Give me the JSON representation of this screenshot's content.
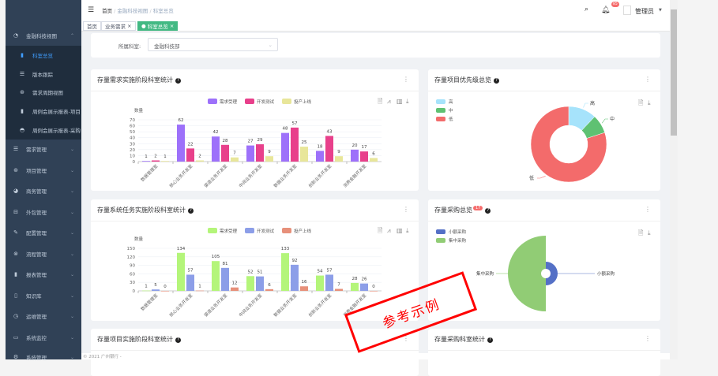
{
  "sidebar": {
    "items": [
      {
        "label": "金融科技视图",
        "icon": "dashboard-icon",
        "expanded": true
      },
      {
        "label": "科室总览",
        "icon": "bar-chart-icon",
        "child": true,
        "active": true
      },
      {
        "label": "版本跟踪",
        "icon": "list-icon",
        "child": true
      },
      {
        "label": "需求周期视图",
        "icon": "cycle-icon",
        "child": true
      },
      {
        "label": "周例会展示报表-项目",
        "icon": "bar-chart-icon",
        "child": true
      },
      {
        "label": "周例会展示报表-采购",
        "icon": "gauge-icon",
        "child": true
      },
      {
        "label": "需求管理",
        "icon": "list-icon"
      },
      {
        "label": "项目管理",
        "icon": "cycle-icon"
      },
      {
        "label": "商务管理",
        "icon": "globe-icon"
      },
      {
        "label": "外包管理",
        "icon": "car-icon"
      },
      {
        "label": "配置管理",
        "icon": "edit-icon"
      },
      {
        "label": "流程管理",
        "icon": "flow-icon"
      },
      {
        "label": "报表管理",
        "icon": "bar-chart-icon"
      },
      {
        "label": "知识库",
        "icon": "book-icon"
      },
      {
        "label": "运维管理",
        "icon": "monitor-icon"
      },
      {
        "label": "系统监控",
        "icon": "screen-icon"
      },
      {
        "label": "系统管理",
        "icon": "gear-icon"
      }
    ]
  },
  "header": {
    "breadcrumb": [
      "首页",
      "金融科技视图",
      "科室总览"
    ],
    "notification_count": "85",
    "user": "管理员"
  },
  "tags": [
    {
      "label": "首页"
    },
    {
      "label": "业务需求",
      "close": "×"
    },
    {
      "label": "科室总览",
      "close": "×",
      "active": true
    }
  ],
  "filter": {
    "label": "所属科室:",
    "value": "金融科技部"
  },
  "colors": {
    "accent": "#409eff",
    "active_tag": "#42b983",
    "sidebar": "#304156"
  },
  "cards": {
    "c1": {
      "title": "存量需求实施阶段科室统计"
    },
    "c2": {
      "title": "存量项目优先级总览"
    },
    "c3": {
      "title": "存量系统任务实施阶段科室统计"
    },
    "c4": {
      "title": "存量采购总览",
      "badge": "17"
    },
    "c5": {
      "title": "存量项目实施阶段科室统计"
    },
    "c6": {
      "title": "存量采购科室统计"
    }
  },
  "chart_data": [
    {
      "type": "bar",
      "ylabel": "数量",
      "ylim": [
        0,
        70
      ],
      "yticks": [
        0,
        10,
        20,
        30,
        40,
        50,
        60,
        70
      ],
      "categories": [
        "数据管理室",
        "核心业务开发室",
        "渠道业务开发室",
        "中间业务开发室",
        "数据业务开发室",
        "创新业务开发室",
        "消费金融开发室"
      ],
      "series": [
        {
          "name": "需求受理",
          "color": "#9d71fa",
          "values": [
            1,
            62,
            42,
            27,
            48,
            18,
            20
          ]
        },
        {
          "name": "开发测试",
          "color": "#e8408b",
          "values": [
            2,
            22,
            28,
            29,
            57,
            43,
            17
          ]
        },
        {
          "name": "投产上线",
          "color": "#e8e69a",
          "values": [
            1,
            2,
            7,
            9,
            25,
            9,
            6
          ]
        }
      ],
      "legend": "top-center"
    },
    {
      "type": "pie",
      "donut": true,
      "categories": [
        "高",
        "中",
        "低"
      ],
      "colors": [
        "#a6e3fb",
        "#5fc172",
        "#f36b6b"
      ],
      "values_percent": [
        12,
        8,
        80
      ],
      "legend": "top-left"
    },
    {
      "type": "bar",
      "ylabel": "数量",
      "ylim": [
        0,
        150
      ],
      "yticks": [
        0,
        30,
        60,
        90,
        120,
        150
      ],
      "categories": [
        "数据管理室",
        "核心业务开发室",
        "渠道业务开发室",
        "中间业务开发室",
        "数据业务开发室",
        "创新业务开发室",
        "消费金融开发室"
      ],
      "series": [
        {
          "name": "需求受理",
          "color": "#b4f57a",
          "values": [
            1,
            134,
            105,
            52,
            133,
            54,
            28
          ]
        },
        {
          "name": "开发测试",
          "color": "#8c9ee8",
          "values": [
            5,
            57,
            81,
            51,
            92,
            57,
            26
          ]
        },
        {
          "name": "投产上线",
          "color": "#e7907a",
          "values": [
            0,
            1,
            12,
            6,
            16,
            7,
            0
          ]
        }
      ],
      "legend": "top-center"
    },
    {
      "type": "pie",
      "rose": true,
      "categories": [
        "小额采购",
        "集中采购"
      ],
      "colors": [
        "#5470c6",
        "#91cc75"
      ],
      "legend": "top-left"
    }
  ],
  "footer": "© 2021 广州银行 -",
  "watermark": "参考示例"
}
